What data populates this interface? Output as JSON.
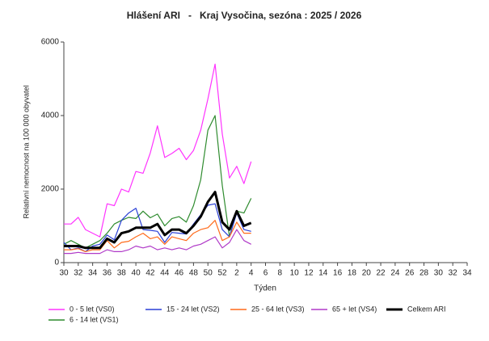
{
  "chart_data": {
    "type": "line",
    "title": "Hlášení ARI   -   Kraj Vysočina, sezóna : 2025 / 2026",
    "x_label": "Týden",
    "y_label": "Relativní nemocnost na 100 000 obyvatel",
    "categories": [
      30,
      null,
      32,
      null,
      34,
      null,
      36,
      null,
      38,
      null,
      40,
      null,
      42,
      null,
      44,
      null,
      46,
      null,
      48,
      null,
      50,
      null,
      52,
      null,
      2,
      null,
      4,
      null,
      6,
      null,
      8,
      null,
      10,
      null,
      12,
      null,
      14,
      null,
      16,
      null,
      18,
      null,
      20,
      null,
      22,
      null,
      24,
      null,
      26,
      null,
      28,
      null,
      30,
      null,
      32,
      null,
      34
    ],
    "ylim": [
      0,
      6000
    ],
    "yticks": [
      0,
      2000,
      4000,
      6000
    ],
    "grid": false,
    "series": [
      {
        "name": "0 - 5 let (VS0)",
        "color": "#ff33ff",
        "values": [
          1050,
          1050,
          1230,
          900,
          800,
          700,
          1600,
          1550,
          2000,
          1920,
          2480,
          2430,
          2980,
          3720,
          2860,
          2970,
          3110,
          2800,
          3050,
          3600,
          4450,
          5400,
          3500,
          2300,
          2620,
          2150,
          2750,
          null,
          null,
          null,
          null,
          null,
          null,
          null,
          null,
          null,
          null,
          null,
          null,
          null,
          null,
          null,
          null,
          null,
          null,
          null,
          null,
          null,
          null,
          null,
          null,
          null,
          null,
          null,
          null,
          null,
          null
        ]
      },
      {
        "name": "6 - 14 let (VS1)",
        "color": "#2e8b2e",
        "values": [
          500,
          600,
          500,
          400,
          500,
          600,
          800,
          1050,
          1150,
          1230,
          1200,
          1400,
          1220,
          1320,
          1000,
          1200,
          1250,
          1100,
          1550,
          2250,
          3600,
          4000,
          2100,
          700,
          1400,
          1350,
          1750,
          null,
          null,
          null,
          null,
          null,
          null,
          null,
          null,
          null,
          null,
          null,
          null,
          null,
          null,
          null,
          null,
          null,
          null,
          null,
          null,
          null,
          null,
          null,
          null,
          null,
          null,
          null,
          null,
          null,
          null
        ]
      },
      {
        "name": "15 - 24 let (VS2)",
        "color": "#2a3fd6",
        "values": [
          550,
          350,
          400,
          300,
          450,
          500,
          750,
          620,
          1150,
          1350,
          1480,
          900,
          880,
          850,
          550,
          820,
          800,
          780,
          1050,
          1300,
          1560,
          1600,
          900,
          700,
          1350,
          900,
          850,
          null,
          null,
          null,
          null,
          null,
          null,
          null,
          null,
          null,
          null,
          null,
          null,
          null,
          null,
          null,
          null,
          null,
          null,
          null,
          null,
          null,
          null,
          null,
          null,
          null,
          null,
          null,
          null,
          null,
          null
        ]
      },
      {
        "name": "25 - 64 let (VS3)",
        "color": "#ff6a1a",
        "values": [
          350,
          350,
          380,
          300,
          350,
          350,
          600,
          400,
          550,
          580,
          700,
          800,
          650,
          700,
          500,
          700,
          650,
          600,
          800,
          900,
          950,
          1150,
          600,
          700,
          1100,
          800,
          800,
          null,
          null,
          null,
          null,
          null,
          null,
          null,
          null,
          null,
          null,
          null,
          null,
          null,
          null,
          null,
          null,
          null,
          null,
          null,
          null,
          null,
          null,
          null,
          null,
          null,
          null,
          null,
          null,
          null,
          null
        ]
      },
      {
        "name": "65 + let (VS4)",
        "color": "#b03ac8",
        "values": [
          250,
          250,
          280,
          250,
          250,
          250,
          350,
          300,
          300,
          350,
          450,
          400,
          450,
          350,
          400,
          350,
          400,
          350,
          450,
          500,
          600,
          700,
          400,
          550,
          900,
          600,
          500,
          null,
          null,
          null,
          null,
          null,
          null,
          null,
          null,
          null,
          null,
          null,
          null,
          null,
          null,
          null,
          null,
          null,
          null,
          null,
          null,
          null,
          null,
          null,
          null,
          null,
          null,
          null,
          null,
          null,
          null
        ]
      },
      {
        "name": "Celkem ARI",
        "color": "#000000",
        "values": [
          450,
          450,
          450,
          400,
          400,
          400,
          650,
          550,
          800,
          850,
          950,
          950,
          950,
          1050,
          750,
          900,
          900,
          800,
          1000,
          1250,
          1650,
          1920,
          1100,
          900,
          1400,
          1000,
          1080,
          null,
          null,
          null,
          null,
          null,
          null,
          null,
          null,
          null,
          null,
          null,
          null,
          null,
          null,
          null,
          null,
          null,
          null,
          null,
          null,
          null,
          null,
          null,
          null,
          null,
          null,
          null,
          null,
          null,
          null
        ]
      }
    ]
  }
}
